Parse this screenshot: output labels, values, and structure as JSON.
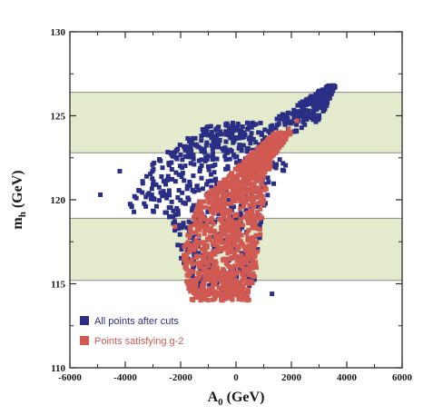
{
  "chart_data": {
    "type": "scatter",
    "xlabel_main": "A",
    "xlabel_sub": "0",
    "xlabel_unit": " (GeV)",
    "ylabel_main": "m",
    "ylabel_sub": "h",
    "ylabel_unit": " (GeV)",
    "xlim": [
      -6000,
      6000
    ],
    "ylim": [
      110,
      130
    ],
    "xticks": [
      -6000,
      -4000,
      -2000,
      0,
      2000,
      4000,
      6000
    ],
    "xtick_labels": [
      "-6000",
      "-4000",
      "-2000",
      "0",
      "2000",
      "4000",
      "6000"
    ],
    "yticks": [
      110,
      115,
      120,
      125,
      130
    ],
    "ytick_labels": [
      "110",
      "115",
      "120",
      "125",
      "130"
    ],
    "grid": false,
    "legend_position": "bottom-left",
    "bands": [
      {
        "y": [
          122.8,
          126.4
        ],
        "color": "#e3ebcc"
      },
      {
        "y": [
          115.2,
          118.9
        ],
        "color": "#e3ebcc"
      }
    ],
    "series": [
      {
        "name": "All points after cuts",
        "color": "#2a2f85",
        "regions": [
          {
            "y_min": 119.2,
            "y_max": 122.4,
            "x_at_y_min": [
              -4000,
              900
            ],
            "x_at_y_max": [
              -3000,
              2000
            ]
          },
          {
            "y_min": 122.4,
            "y_max": 124.6,
            "x_at_y_min": [
              -3000,
              500
            ],
            "x_at_y_max": [
              -800,
              2800
            ]
          },
          {
            "y_min": 124.6,
            "y_max": 126.8,
            "x_at_y_min": [
              1200,
              3000
            ],
            "x_at_y_max": [
              3300,
              3600
            ]
          },
          {
            "y_min": 114.3,
            "y_max": 119.2,
            "x_at_y_min": [
              -1600,
              600
            ],
            "x_at_y_max": [
              -2500,
              1000
            ]
          }
        ],
        "outliers": [
          {
            "x": -4900,
            "y": 120.3
          },
          {
            "x": -4200,
            "y": 121.7
          },
          {
            "x": -3600,
            "y": 120.1
          },
          {
            "x": 1300,
            "y": 114.4
          },
          {
            "x": 1100,
            "y": 123.1
          },
          {
            "x": 2800,
            "y": 125.6
          },
          {
            "x": 3500,
            "y": 126.8
          },
          {
            "x": 3350,
            "y": 126.5
          },
          {
            "x": 900,
            "y": 118.9
          }
        ]
      },
      {
        "name": "Points satisfying g-2",
        "color": "#d05a52",
        "regions": [
          {
            "y_min": 114.0,
            "y_max": 116.5,
            "x_at_y_min": [
              -1600,
              500
            ],
            "x_at_y_max": [
              -2000,
              800
            ]
          },
          {
            "y_min": 116.5,
            "y_max": 119.8,
            "x_at_y_min": [
              -2000,
              800
            ],
            "x_at_y_max": [
              -1400,
              1000
            ]
          },
          {
            "y_min": 119.8,
            "y_max": 122.5,
            "x_at_y_min": [
              -1400,
              1000
            ],
            "x_at_y_max": [
              400,
              1300
            ]
          },
          {
            "y_min": 122.5,
            "y_max": 124.0,
            "x_at_y_min": [
              400,
              1300
            ],
            "x_at_y_max": [
              1400,
              2000
            ]
          }
        ],
        "outliers": [
          {
            "x": -2200,
            "y": 118.4
          },
          {
            "x": 2200,
            "y": 124.7
          },
          {
            "x": 1900,
            "y": 124.2
          },
          {
            "x": -1700,
            "y": 114.9
          },
          {
            "x": 1800,
            "y": 123.6
          }
        ]
      }
    ]
  }
}
